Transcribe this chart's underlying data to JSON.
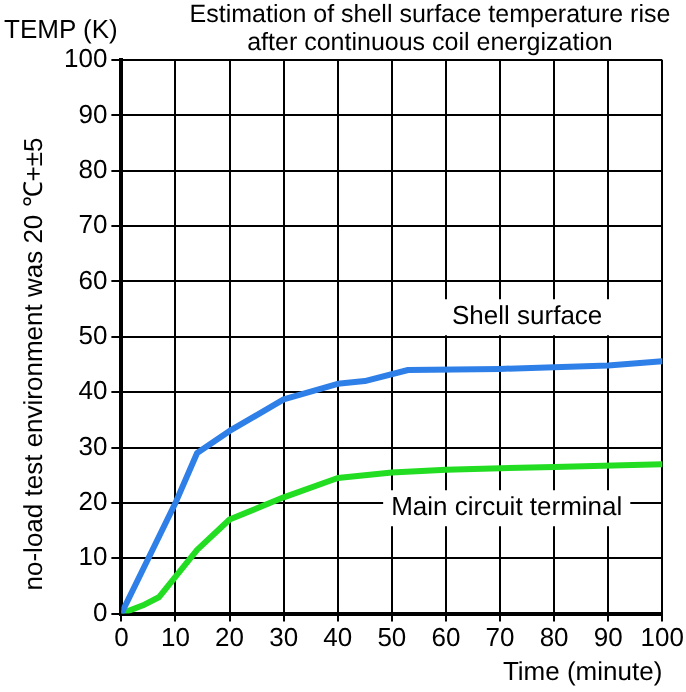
{
  "chart_data": {
    "type": "line",
    "title": "Estimation of shell surface temperature rise after continuous coil energization",
    "ylabel": "TEMP (K)",
    "xlabel": "Time (minute)",
    "annotations": [
      "no-load test environment was 20 ℃+±5"
    ],
    "xlim": [
      0,
      100
    ],
    "ylim": [
      0,
      100
    ],
    "xticks": [
      0,
      10,
      20,
      30,
      40,
      50,
      60,
      70,
      80,
      90,
      100
    ],
    "yticks": [
      0,
      10,
      20,
      30,
      40,
      50,
      60,
      70,
      80,
      90,
      100
    ],
    "grid": true,
    "legend": false,
    "marker": "none",
    "line_style": "solid",
    "series": [
      {
        "name": "Shell surface",
        "color": "#2f7fe8",
        "x": [
          0,
          5,
          10,
          14,
          20,
          30,
          40,
          45,
          53,
          70,
          90,
          100
        ],
        "values": [
          0,
          10,
          20,
          29,
          33,
          38.7,
          41.5,
          42,
          44,
          44.2,
          44.8,
          45.6
        ]
      },
      {
        "name": "Main circuit terminal",
        "color": "#22dd22",
        "x": [
          0,
          4,
          7,
          14,
          20,
          30,
          40,
          50,
          60,
          80,
          100
        ],
        "values": [
          0,
          1.5,
          3,
          11.5,
          17,
          21,
          24.5,
          25.5,
          26,
          26.5,
          27
        ]
      }
    ]
  }
}
